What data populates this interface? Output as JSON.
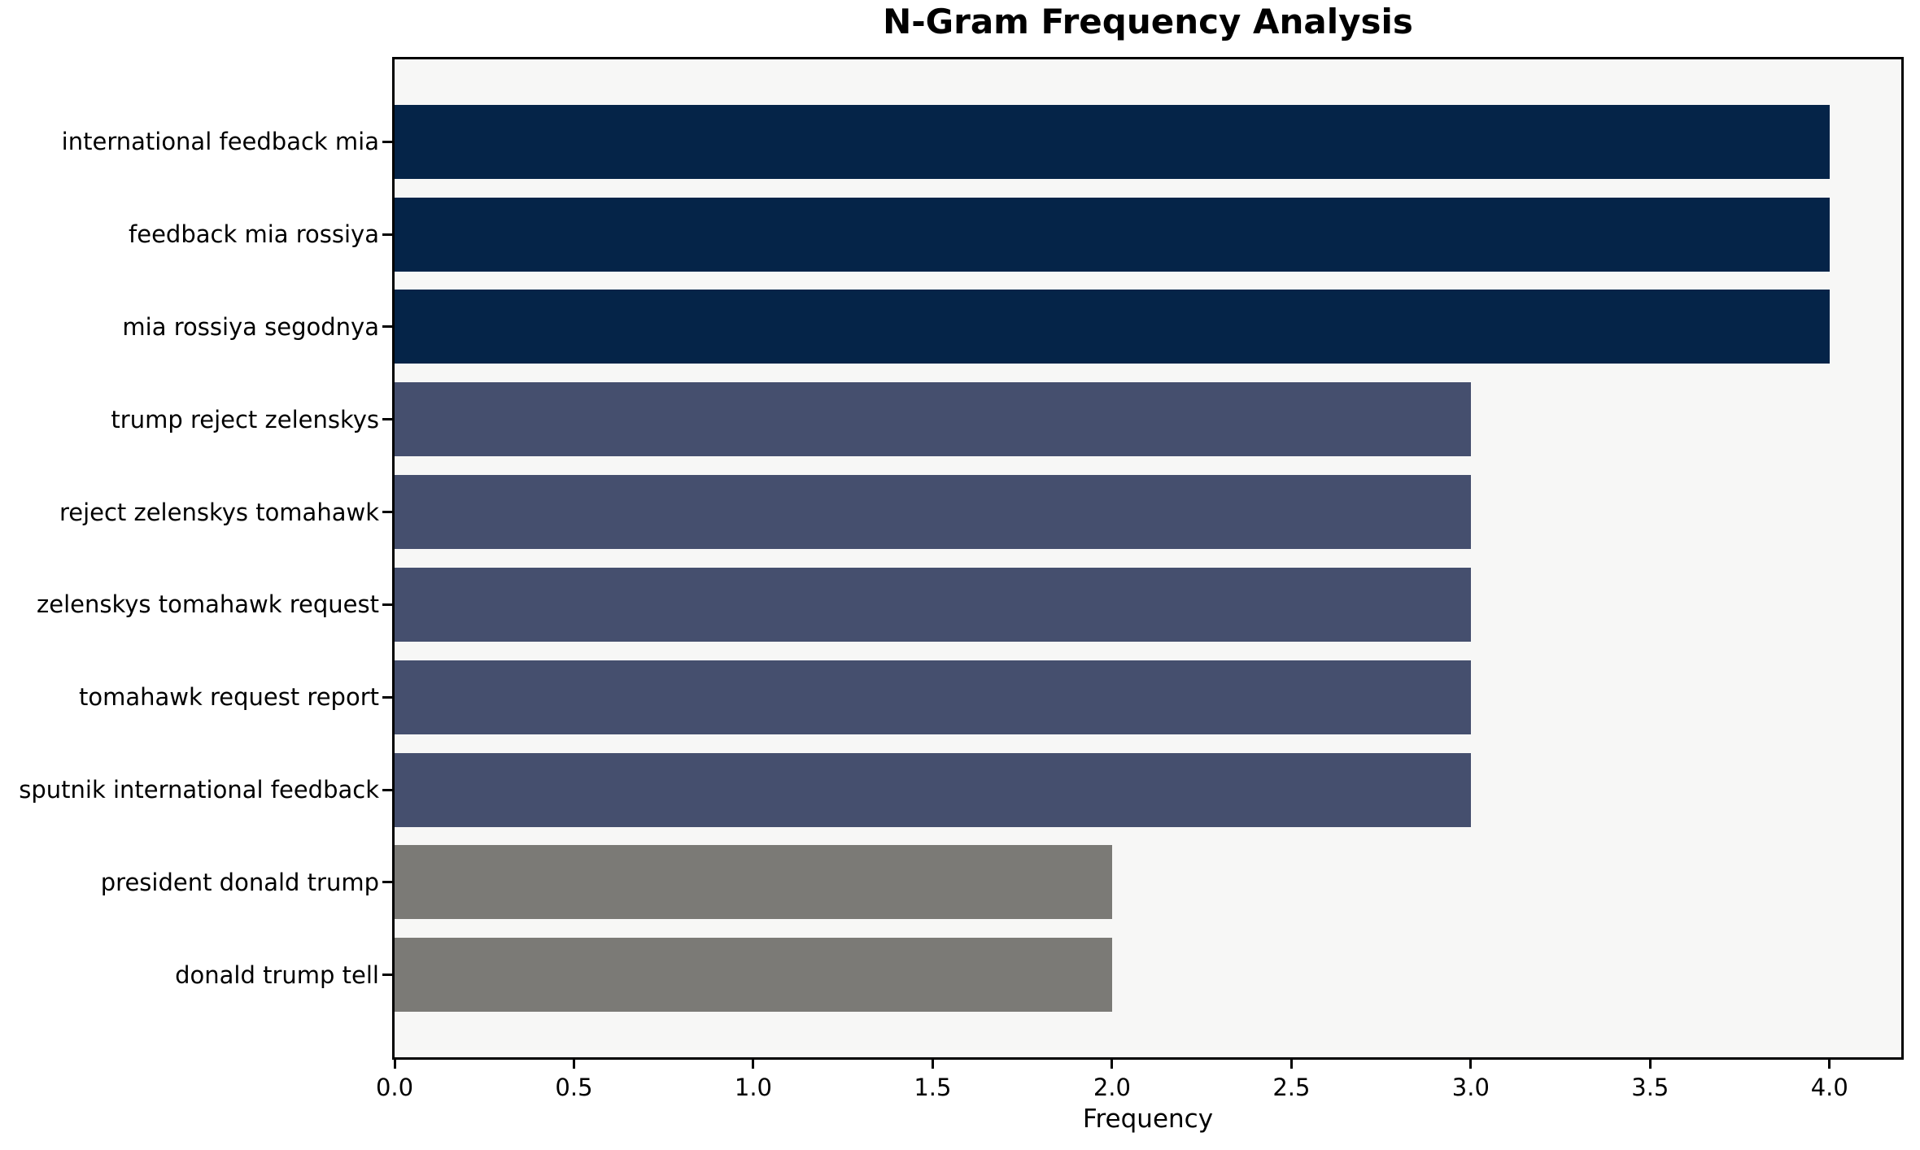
{
  "title": "N-Gram Frequency Analysis",
  "chart_data": {
    "type": "bar",
    "orientation": "horizontal",
    "title": "N-Gram Frequency Analysis",
    "xlabel": "Frequency",
    "ylabel": "",
    "categories": [
      "international feedback mia",
      "feedback mia rossiya",
      "mia rossiya segodnya",
      "trump reject zelenskys",
      "reject zelenskys tomahawk",
      "zelenskys tomahawk request",
      "tomahawk request report",
      "sputnik international feedback",
      "president donald trump",
      "donald trump tell"
    ],
    "values": [
      4,
      4,
      4,
      3,
      3,
      3,
      3,
      3,
      2,
      2
    ],
    "bar_colors": [
      "#052448",
      "#052448",
      "#052448",
      "#454f6e",
      "#454f6e",
      "#454f6e",
      "#454f6e",
      "#454f6e",
      "#7b7a76",
      "#7b7a76"
    ],
    "xlim": [
      0,
      4.2
    ],
    "x_tick_values": [
      0.0,
      0.5,
      1.0,
      1.5,
      2.0,
      2.5,
      3.0,
      3.5,
      4.0
    ],
    "x_tick_labels": [
      "0.0",
      "0.5",
      "1.0",
      "1.5",
      "2.0",
      "2.5",
      "3.0",
      "3.5",
      "4.0"
    ],
    "grid": false,
    "legend": null,
    "bar_height_fraction": 0.8,
    "axis_margin_fraction": 0.05,
    "colors": {
      "plot_background": "#f7f7f6",
      "figure_background": "#ffffff",
      "spine": "#000000",
      "text": "#000000",
      "value_4_bar": "#052448",
      "value_3_bar": "#454f6e",
      "value_2_bar": "#7b7a76"
    }
  }
}
